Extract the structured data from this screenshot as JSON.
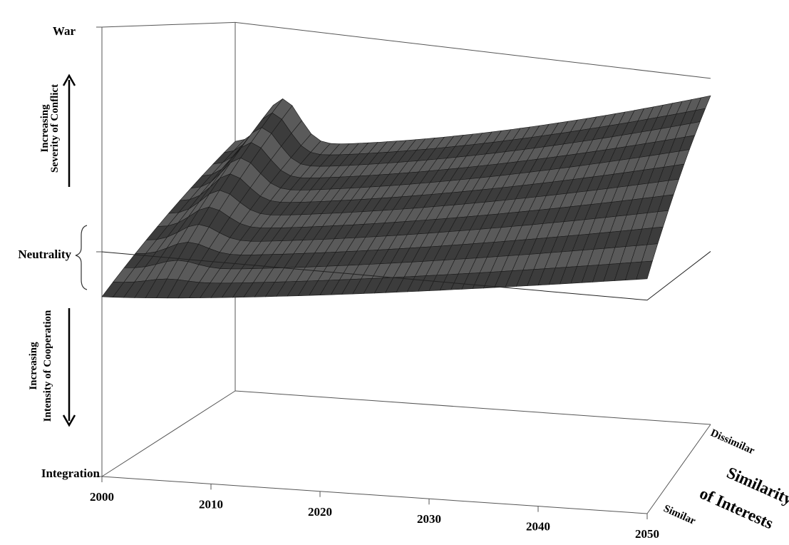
{
  "chart_data": {
    "type": "surface",
    "x_ticks": [
      "2000",
      "2010",
      "2020",
      "2030",
      "2040",
      "2050"
    ],
    "z_labels": {
      "top": "War",
      "middle": "Neutrality",
      "bottom": "Integration"
    },
    "z_arrow_labels": {
      "conflict": [
        "Increasing",
        "Severity of Conflict"
      ],
      "cooperation": [
        "Increasing",
        "Intensity of Cooperation"
      ]
    },
    "y_ticks": {
      "near": "Similar",
      "far": "Dissimilar"
    },
    "y_title": [
      "Similarity",
      "of Interests"
    ],
    "x_range": [
      2000,
      2050
    ],
    "z_range_labels": [
      "Integration",
      "Neutrality",
      "War"
    ],
    "surface": {
      "rows": 12,
      "columns": 50,
      "near_edge_start_level": -0.2,
      "far_edge_start_level": 0.35,
      "peak_year_far": 2005,
      "end_level_near": 0.1,
      "end_level_far": 0.9
    },
    "colors": {
      "surface_fill": "#3c3c3c",
      "surface_light": "#5a5a5a",
      "grid_line": "#1a1a1a",
      "axis": "#555555"
    }
  }
}
